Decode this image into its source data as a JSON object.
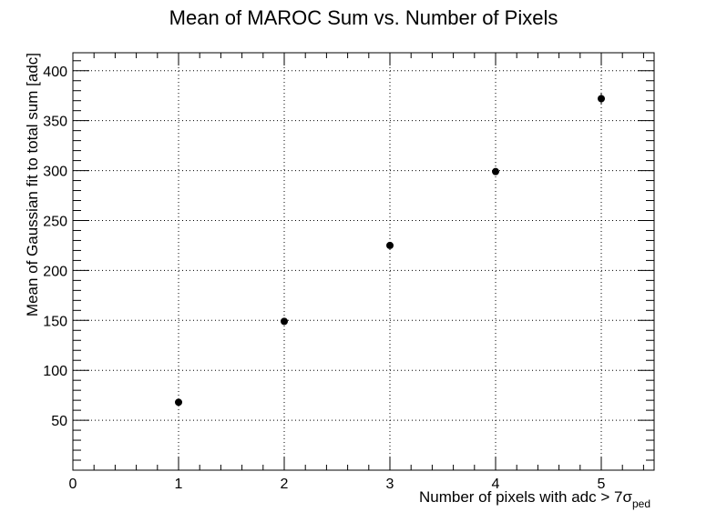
{
  "chart_data": {
    "type": "scatter",
    "title": "Mean of MAROC Sum vs. Number of Pixels",
    "xlabel": {
      "text": "Number of pixels with adc > 7σ",
      "subscript": "ped"
    },
    "ylabel": "Mean of Gaussian fit to total sum [adc]",
    "xlim": [
      0,
      5.5
    ],
    "ylim": [
      0,
      418
    ],
    "x_ticks": [
      0,
      1,
      2,
      3,
      4,
      5
    ],
    "y_ticks": [
      50,
      100,
      150,
      200,
      250,
      300,
      350,
      400
    ],
    "grid": true,
    "series": [
      {
        "x": [
          1,
          2,
          3,
          4,
          5
        ],
        "y": [
          68,
          149,
          225,
          299,
          372
        ],
        "yerr": [
          2,
          2,
          2,
          2,
          6
        ]
      }
    ],
    "marker_color": "#000000"
  }
}
